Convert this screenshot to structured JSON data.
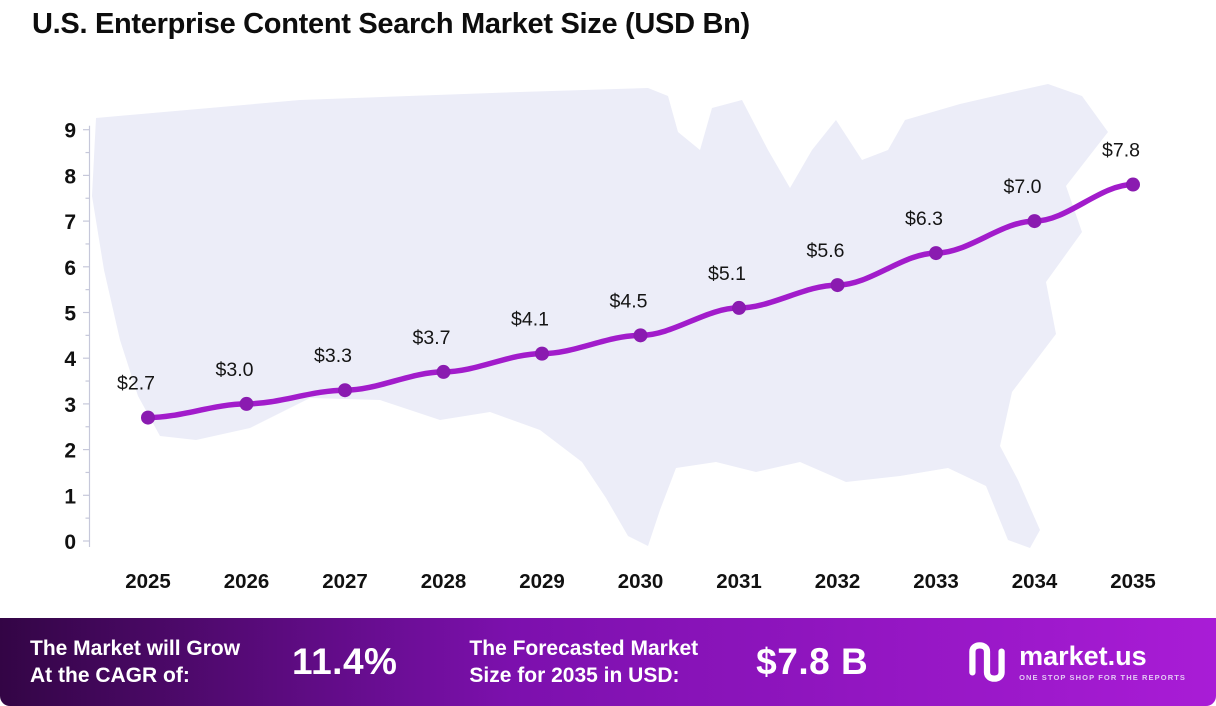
{
  "title": "U.S. Enterprise Content Search Market Size (USD Bn)",
  "chart_data": {
    "type": "line",
    "title": "U.S. Enterprise Content Search Market Size (USD Bn)",
    "categories": [
      "2025",
      "2026",
      "2027",
      "2028",
      "2029",
      "2030",
      "2031",
      "2032",
      "2033",
      "2034",
      "2035"
    ],
    "values": [
      2.7,
      3.0,
      3.3,
      3.7,
      4.1,
      4.5,
      5.1,
      5.6,
      6.3,
      7.0,
      7.8
    ],
    "point_labels": [
      "$2.7",
      "$3.0",
      "$3.3",
      "$3.7",
      "$4.1",
      "$4.5",
      "$5.1",
      "$5.6",
      "$6.3",
      "$7.0",
      "$7.8"
    ],
    "xlabel": "",
    "ylabel": "",
    "ylim": [
      0,
      9
    ],
    "yticks": [
      0,
      1,
      2,
      3,
      4,
      5,
      6,
      7,
      8,
      9
    ],
    "grid": false,
    "legend": "none",
    "background_motif": "us-map-silhouette"
  },
  "colors": {
    "line": "#a21ccb",
    "marker": "#8a1bb0",
    "axis": "#c6c8da",
    "tick_text": "#111111",
    "point_label_text": "#151515",
    "map_fill": "#ecedf8",
    "banner_gradient": [
      "#330545",
      "#7c10ad",
      "#a91cd6"
    ],
    "footer_text": "#ffffff"
  },
  "footer": {
    "cagr": {
      "label": "The Market will Grow\nAt the CAGR of:",
      "value": "11.4%"
    },
    "forecast": {
      "label": "The Forecasted Market\nSize for 2035 in USD:",
      "value": "$7.8 B"
    },
    "brand": {
      "name": "market.us",
      "tagline": "ONE STOP SHOP FOR THE REPORTS"
    }
  }
}
